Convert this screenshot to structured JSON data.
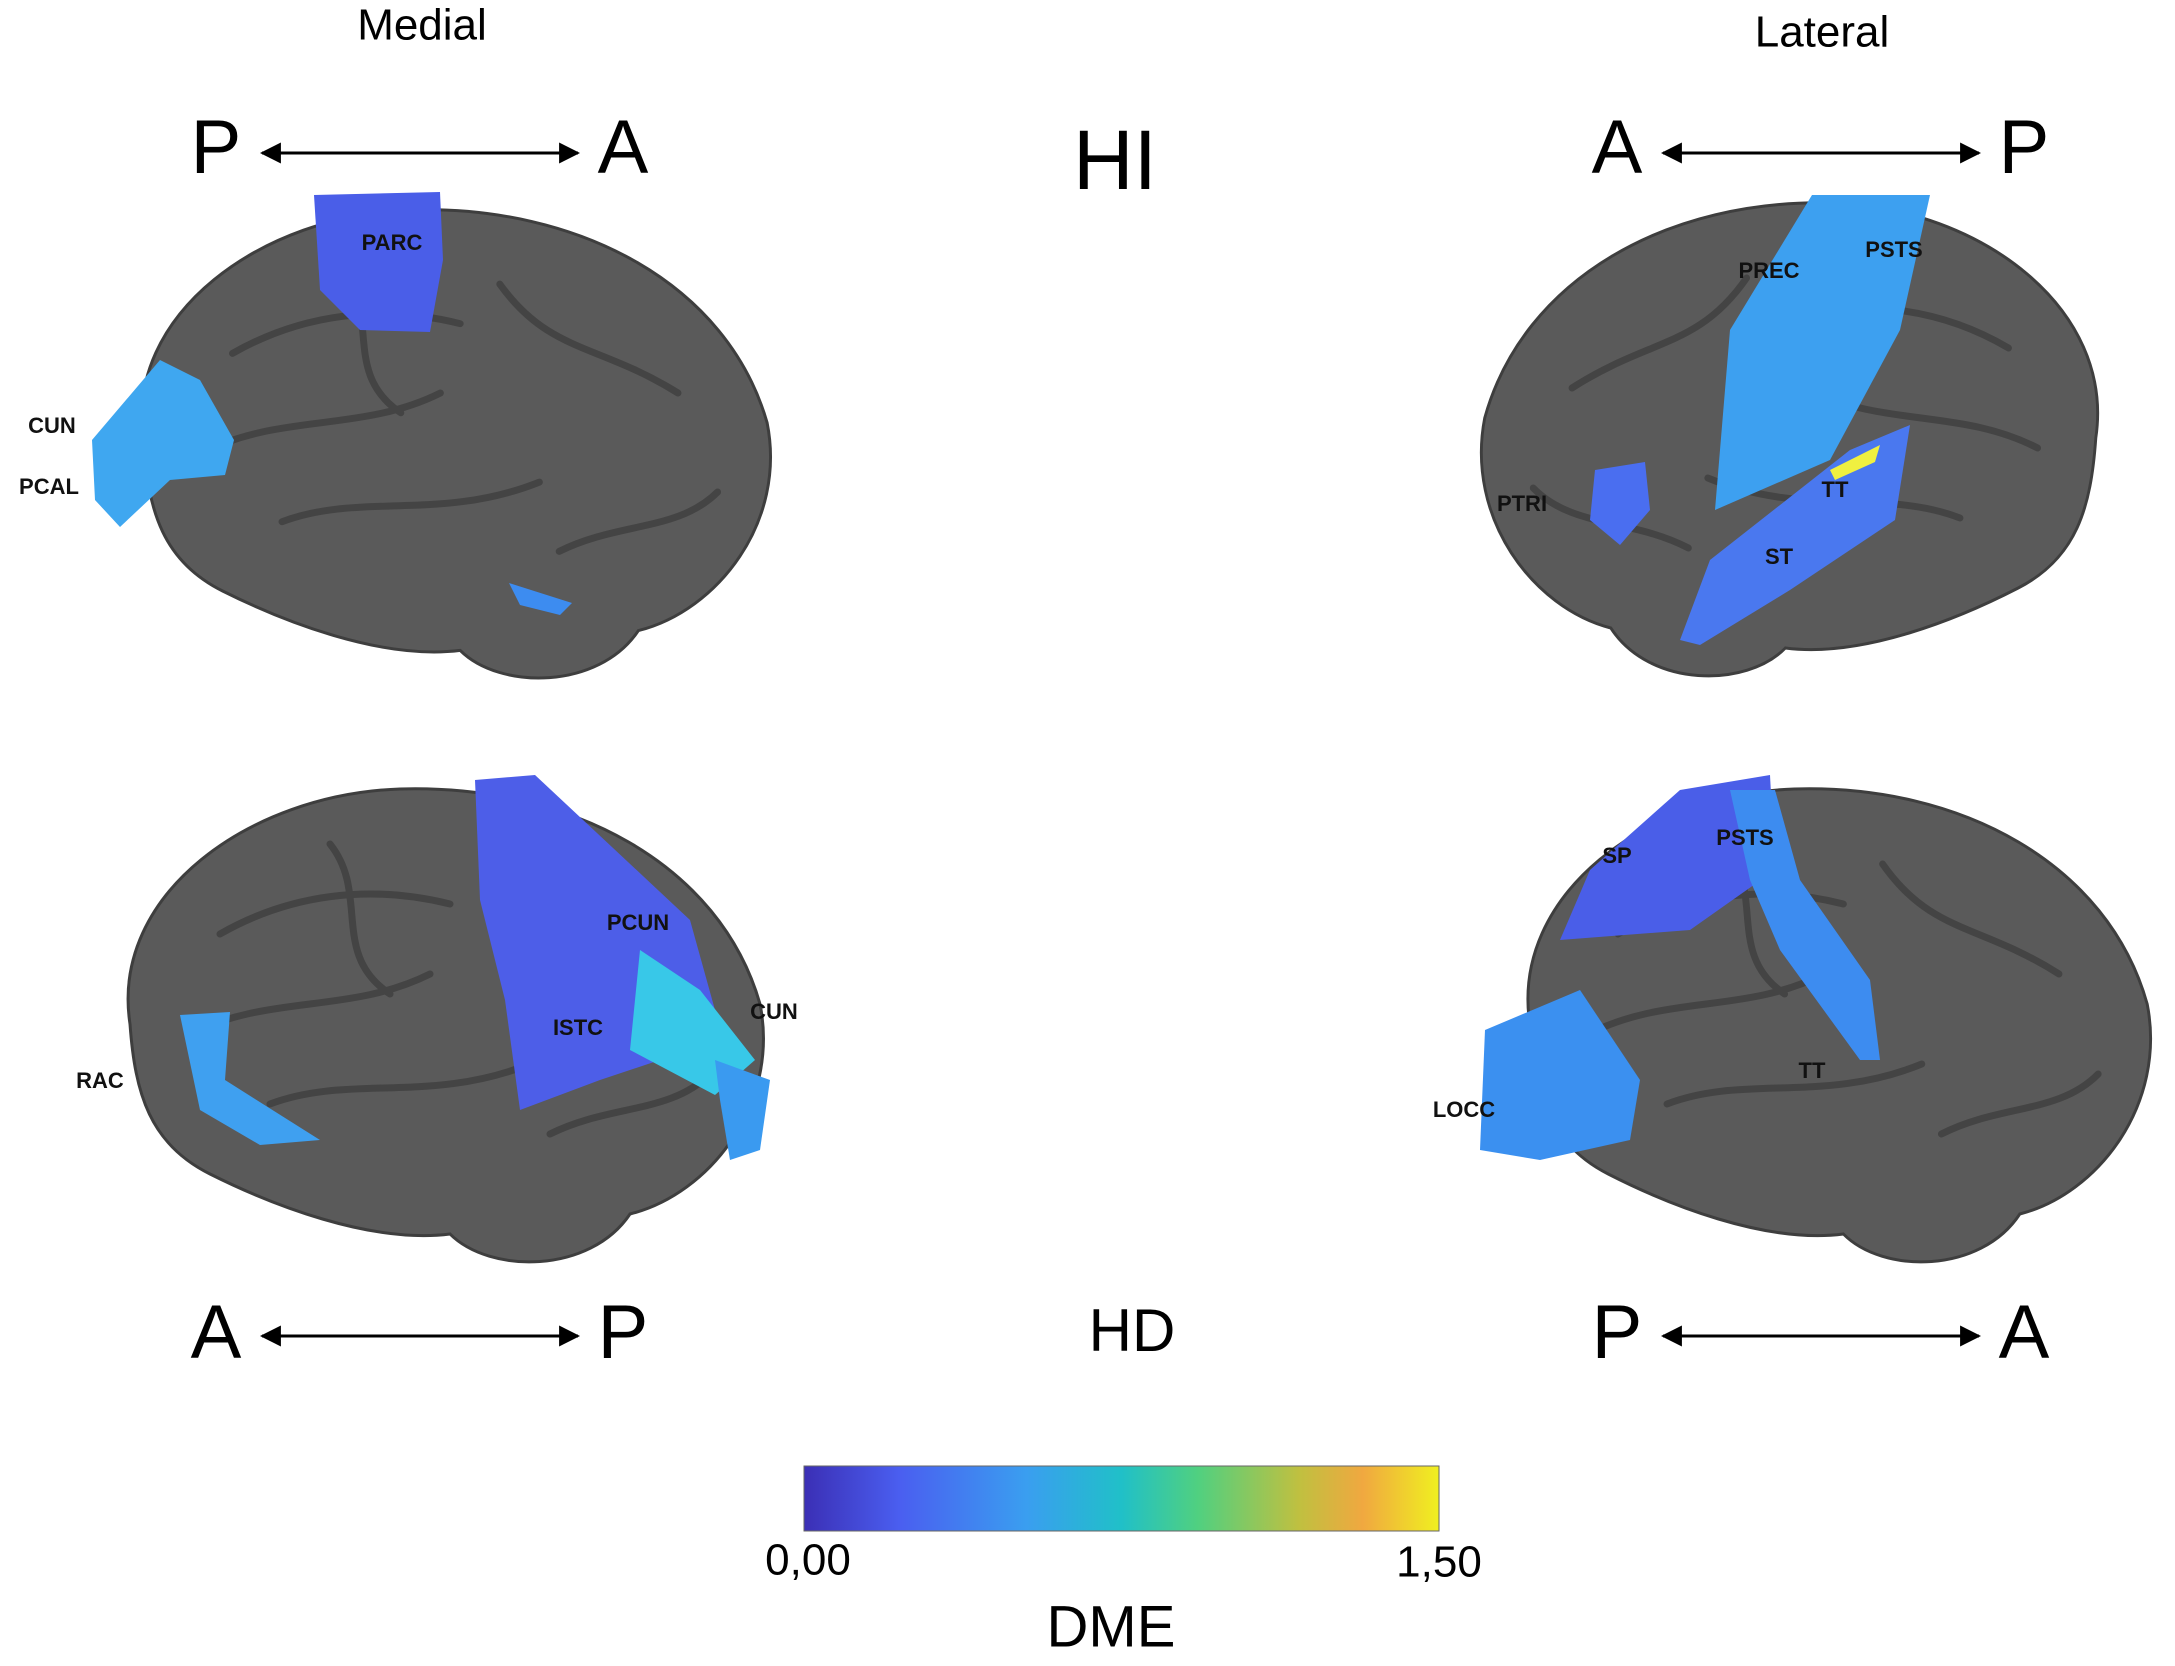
{
  "headers": {
    "medial": "Medial",
    "lateral": "Lateral"
  },
  "rows": [
    {
      "group": "HI",
      "medial": {
        "left": "P",
        "right": "A",
        "regions": [
          "PARC",
          "CUN",
          "PCAL"
        ]
      },
      "lateral": {
        "left": "A",
        "right": "P",
        "regions": [
          "PREC",
          "PSTS",
          "PTRI",
          "TT",
          "ST"
        ]
      }
    },
    {
      "group": "HD",
      "medial": {
        "left": "A",
        "right": "P",
        "regions": [
          "PCUN",
          "ISTC",
          "CUN",
          "RAC"
        ]
      },
      "lateral": {
        "left": "P",
        "right": "A",
        "regions": [
          "SP",
          "PSTS",
          "TT",
          "LOCC"
        ]
      }
    }
  ],
  "colorbar": {
    "min_label": "0,00",
    "max_label": "1,50",
    "title": "DME"
  }
}
